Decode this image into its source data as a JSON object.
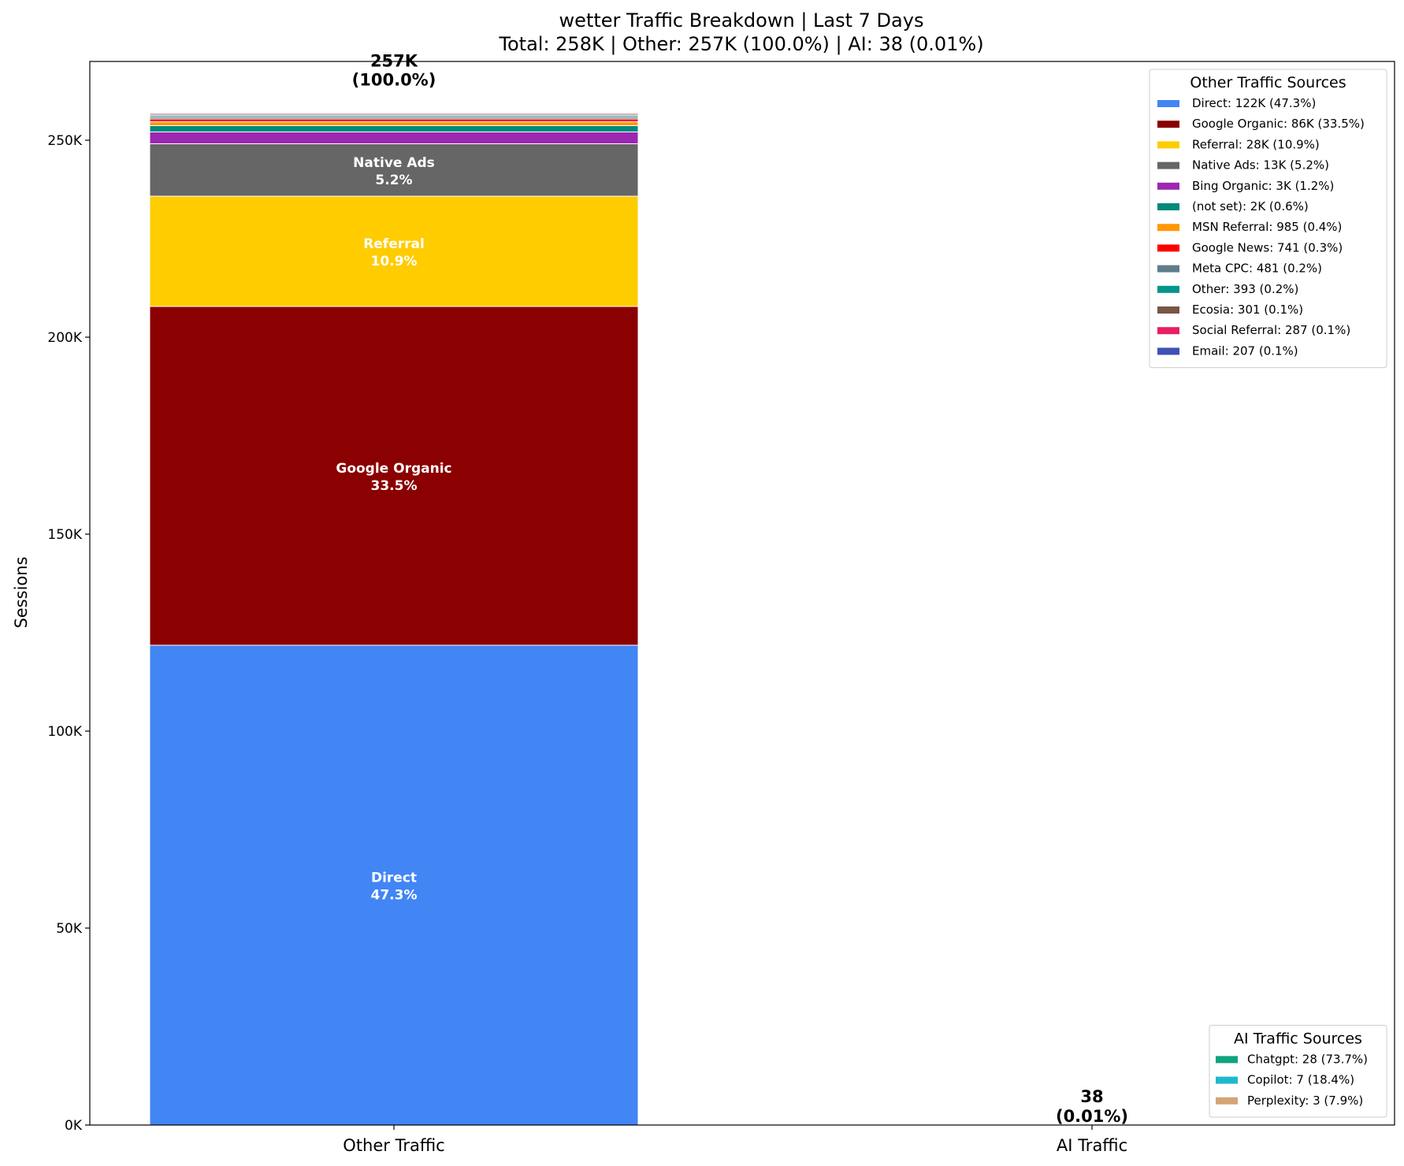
{
  "chart_data": {
    "type": "bar",
    "stacked": true,
    "title": "wetter Traffic Breakdown | Last 7 Days",
    "subtitle": "Total: 258K | Other: 257K (100.0%) | AI: 38 (0.01%)",
    "ylabel": "Sessions",
    "xlabel": "",
    "ylim": [
      0,
      270000
    ],
    "yticks": [
      0,
      50000,
      100000,
      150000,
      200000,
      250000
    ],
    "ytick_labels": [
      "0K",
      "50K",
      "100K",
      "150K",
      "200K",
      "250K"
    ],
    "categories": [
      "Other Traffic",
      "AI Traffic"
    ],
    "bar_totals": [
      {
        "value": "257K",
        "pct": "(100.0%)"
      },
      {
        "value": "38",
        "pct": "(0.01%)"
      }
    ],
    "other_series": [
      {
        "name": "Direct",
        "value": 121800,
        "color": "#4285F4",
        "legend": "Direct: 122K (47.3%)",
        "inbar": "Direct",
        "inbar_pct": "47.3%"
      },
      {
        "name": "Google Organic",
        "value": 86000,
        "color": "#8B0000",
        "legend": "Google Organic: 86K (33.5%)",
        "inbar": "Google Organic",
        "inbar_pct": "33.5%"
      },
      {
        "name": "Referral",
        "value": 28000,
        "color": "#FFCC00",
        "legend": "Referral: 28K (10.9%)",
        "inbar": "Referral",
        "inbar_pct": "10.9%"
      },
      {
        "name": "Native Ads",
        "value": 13300,
        "color": "#666666",
        "legend": "Native Ads: 13K (5.2%)",
        "inbar": "Native Ads",
        "inbar_pct": "5.2%"
      },
      {
        "name": "Bing Organic",
        "value": 3000,
        "color": "#9C27B0",
        "legend": "Bing Organic: 3K (1.2%)"
      },
      {
        "name": "(not set)",
        "value": 1600,
        "color": "#00897B",
        "legend": "(not set): 2K (0.6%)"
      },
      {
        "name": "MSN Referral",
        "value": 985,
        "color": "#FF9800",
        "legend": "MSN Referral: 985 (0.4%)"
      },
      {
        "name": "Google News",
        "value": 741,
        "color": "#FF0000",
        "legend": "Google News: 741 (0.3%)"
      },
      {
        "name": "Meta CPC",
        "value": 481,
        "color": "#607D8B",
        "legend": "Meta CPC: 481 (0.2%)"
      },
      {
        "name": "Other",
        "value": 393,
        "color": "#009688",
        "legend": "Other: 393 (0.2%)"
      },
      {
        "name": "Ecosia",
        "value": 301,
        "color": "#795548",
        "legend": "Ecosia: 301 (0.1%)"
      },
      {
        "name": "Social Referral",
        "value": 287,
        "color": "#E91E63",
        "legend": "Social Referral: 287 (0.1%)"
      },
      {
        "name": "Email",
        "value": 207,
        "color": "#3F51B5",
        "legend": "Email: 207 (0.1%)"
      }
    ],
    "ai_series": [
      {
        "name": "Chatgpt",
        "value": 28,
        "color": "#10A37F",
        "legend": "Chatgpt: 28 (73.7%)"
      },
      {
        "name": "Copilot",
        "value": 7,
        "color": "#1FB8CD",
        "legend": "Copilot: 7 (18.4%)"
      },
      {
        "name": "Perplexity",
        "value": 3,
        "color": "#D4A574",
        "legend": "Perplexity: 3 (7.9%)"
      }
    ],
    "legend_other_title": "Other Traffic Sources",
    "legend_ai_title": "AI Traffic Sources",
    "legend_other_position": "top-right",
    "legend_ai_position": "bottom-right",
    "grid": false
  }
}
